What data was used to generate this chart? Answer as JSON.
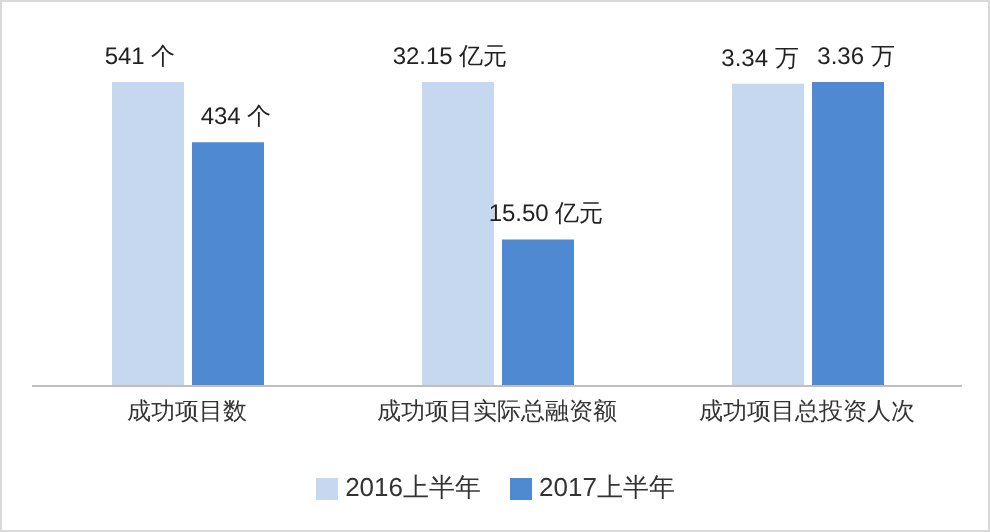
{
  "chart_data": [
    {
      "type": "bar",
      "categories": [
        "成功项目数"
      ],
      "series": [
        {
          "name": "2016上半年",
          "color": "#c6d8ef",
          "values": [
            541
          ],
          "value_labels": [
            "541 个"
          ]
        },
        {
          "name": "2017上半年",
          "color": "#4e89d2",
          "values": [
            434
          ],
          "value_labels": [
            "434 个"
          ]
        }
      ],
      "legend": "bottom"
    },
    {
      "type": "bar",
      "categories": [
        "成功项目实际总融资额"
      ],
      "series": [
        {
          "color": "#c6d8ef",
          "values": [
            32.15
          ],
          "value_labels": [
            "32.15 亿元"
          ]
        },
        {
          "color": "#4e89d2",
          "values": [
            15.5
          ],
          "value_labels": [
            "15.50 亿元"
          ]
        }
      ]
    },
    {
      "type": "bar",
      "categories": [
        "成功项目总投资人次"
      ],
      "series": [
        {
          "color": "#c6d8ef",
          "values": [
            3.34
          ],
          "value_labels": [
            "3.34 万"
          ]
        },
        {
          "color": "#4e89d2",
          "values": [
            3.36
          ],
          "value_labels": [
            "3.36 万"
          ]
        }
      ]
    }
  ]
}
